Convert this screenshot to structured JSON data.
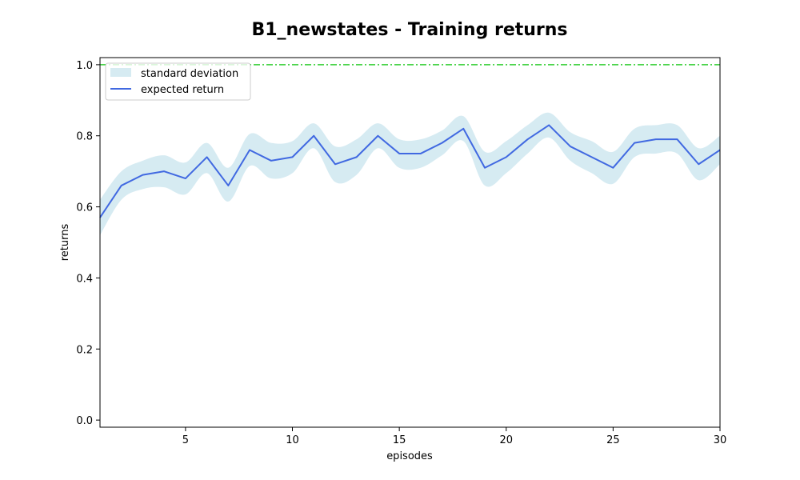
{
  "chart_data": {
    "type": "line",
    "title": "B1_newstates - Training returns",
    "xlabel": "episodes",
    "ylabel": "returns",
    "xlim": [
      1,
      30
    ],
    "ylim": [
      -0.02,
      1.02
    ],
    "xticks": [
      5,
      10,
      15,
      20,
      25,
      30
    ],
    "xtick_labels": [
      "5",
      "10",
      "15",
      "20",
      "25",
      "30"
    ],
    "yticks": [
      0.0,
      0.2,
      0.4,
      0.6,
      0.8,
      1.0
    ],
    "ytick_labels": [
      "0.0",
      "0.2",
      "0.4",
      "0.6",
      "0.8",
      "1.0"
    ],
    "grid": false,
    "legend_position": "top-left",
    "x": [
      1,
      2,
      3,
      4,
      5,
      6,
      7,
      8,
      9,
      10,
      11,
      12,
      13,
      14,
      15,
      16,
      17,
      18,
      19,
      20,
      21,
      22,
      23,
      24,
      25,
      26,
      27,
      28,
      29,
      30
    ],
    "series": [
      {
        "name": "expected return",
        "color": "#4169e1",
        "values": [
          0.57,
          0.66,
          0.69,
          0.7,
          0.68,
          0.74,
          0.66,
          0.76,
          0.73,
          0.74,
          0.8,
          0.72,
          0.74,
          0.8,
          0.75,
          0.75,
          0.78,
          0.82,
          0.71,
          0.74,
          0.79,
          0.83,
          0.77,
          0.74,
          0.71,
          0.78,
          0.79,
          0.79,
          0.72,
          0.76
        ]
      }
    ],
    "band": {
      "name": "standard deviation",
      "color": "#add8e6",
      "upper": [
        0.62,
        0.7,
        0.73,
        0.745,
        0.725,
        0.78,
        0.71,
        0.805,
        0.78,
        0.785,
        0.835,
        0.77,
        0.79,
        0.835,
        0.79,
        0.79,
        0.815,
        0.855,
        0.755,
        0.785,
        0.83,
        0.865,
        0.81,
        0.785,
        0.755,
        0.82,
        0.83,
        0.83,
        0.765,
        0.8
      ],
      "lower": [
        0.52,
        0.62,
        0.65,
        0.655,
        0.635,
        0.695,
        0.615,
        0.715,
        0.68,
        0.695,
        0.765,
        0.67,
        0.69,
        0.765,
        0.71,
        0.71,
        0.745,
        0.785,
        0.66,
        0.695,
        0.75,
        0.795,
        0.73,
        0.695,
        0.665,
        0.74,
        0.75,
        0.75,
        0.675,
        0.72
      ]
    },
    "reference_line": {
      "y": 1.0,
      "color": "#32cd32",
      "style": "dash-dot"
    }
  }
}
